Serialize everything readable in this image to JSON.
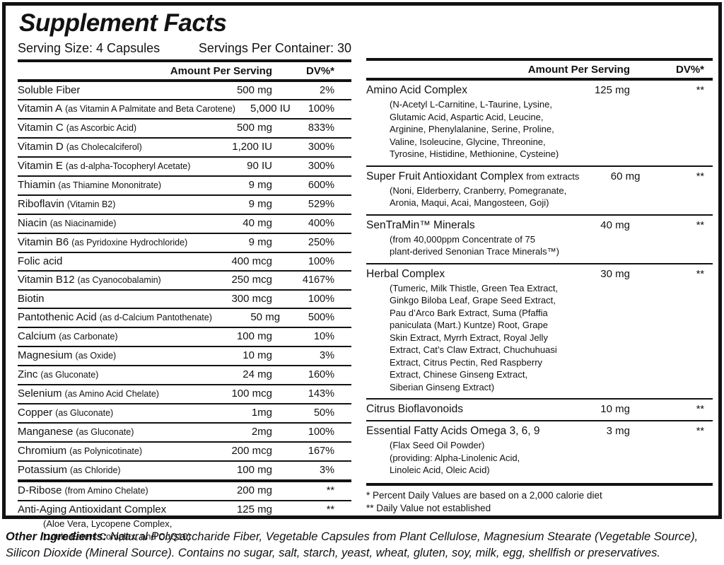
{
  "label": {
    "title": "Supplement Facts",
    "serving_size": "Serving Size: 4 Capsules",
    "servings_per_container": "Servings Per Container: 30",
    "col_amount": "Amount Per Serving",
    "col_dv": "DV%*",
    "ink_color": "#121212",
    "background_color": "#ffffff"
  },
  "left_rows": [
    {
      "name": "Soluble Fiber",
      "amount": "500 mg",
      "dv": "2%"
    },
    {
      "name": "Vitamin A",
      "note": "(as Vitamin A Palmitate and Beta Carotene)",
      "amount": "5,000 IU",
      "dv": "100%"
    },
    {
      "name": "Vitamin C",
      "note": "(as Ascorbic Acid)",
      "amount": "500 mg",
      "dv": "833%"
    },
    {
      "name": "Vitamin D",
      "note": "(as Cholecalciferol)",
      "amount": "1,200 IU",
      "dv": "300%"
    },
    {
      "name": "Vitamin E",
      "note": "(as d-alpha-Tocopheryl Acetate)",
      "amount": "90 IU",
      "dv": "300%"
    },
    {
      "name": "Thiamin",
      "note": "(as Thiamine Mononitrate)",
      "amount": "9 mg",
      "dv": "600%"
    },
    {
      "name": "Riboflavin",
      "note": "(Vitamin B2)",
      "amount": "9 mg",
      "dv": "529%"
    },
    {
      "name": "Niacin",
      "note": "(as Niacinamide)",
      "amount": "40 mg",
      "dv": "400%"
    },
    {
      "name": "Vitamin B6",
      "note": "(as Pyridoxine Hydrochloride)",
      "amount": "9 mg",
      "dv": "250%"
    },
    {
      "name": "Folic acid",
      "amount": "400 mcg",
      "dv": "100%"
    },
    {
      "name": "Vitamin B12",
      "note": "(as Cyanocobalamin)",
      "amount": "250 mcg",
      "dv": "4167%"
    },
    {
      "name": "Biotin",
      "amount": "300 mcg",
      "dv": "100%"
    },
    {
      "name": "Pantothenic Acid",
      "note": "(as d-Calcium Pantothenate)",
      "amount": "50 mg",
      "dv": "500%"
    },
    {
      "name": "Calcium",
      "note": "(as Carbonate)",
      "amount": "100 mg",
      "dv": "10%"
    },
    {
      "name": "Magnesium",
      "note": "(as Oxide)",
      "amount": "10 mg",
      "dv": "3%"
    },
    {
      "name": "Zinc",
      "note": "(as Gluconate)",
      "amount": "24 mg",
      "dv": "160%"
    },
    {
      "name": "Selenium",
      "note": "(as Amino Acid Chelate)",
      "amount": "100 mcg",
      "dv": "143%"
    },
    {
      "name": "Copper",
      "note": "(as Gluconate)",
      "amount": "1mg",
      "dv": "50%"
    },
    {
      "name": "Manganese",
      "note": "(as Gluconate)",
      "amount": "2mg",
      "dv": "100%"
    },
    {
      "name": "Chromium",
      "note": "(as Polynicotinate)",
      "amount": "200 mcg",
      "dv": "167%"
    },
    {
      "name": "Potassium",
      "note": "(as Chloride)",
      "amount": "100 mg",
      "dv": "3%"
    },
    {
      "name": "D-Ribose",
      "note": "(from Amino Chelate)",
      "amount": "200 mg",
      "dv": "**",
      "thick_top": true
    },
    {
      "name": "Anti-Aging Antioxidant Complex",
      "amount": "125 mg",
      "dv": "**",
      "sub": [
        "(Aloe Vera, Lycopene Complex,",
        "Lutein Esters Complex, and CoQ10)"
      ]
    }
  ],
  "right_rows": [
    {
      "name": "Amino Acid Complex",
      "amount": "125 mg",
      "dv": "**",
      "sub": [
        "(N-Acetyl L-Carnitine, L-Taurine, Lysine,",
        "Glutamic Acid, Aspartic Acid, Leucine,",
        "Arginine, Phenylalanine, Serine, Proline,",
        "Valine, Isoleucine, Glycine, Threonine,",
        "Tyrosine, Histidine, Methionine, Cysteine)"
      ]
    },
    {
      "name": "Super Fruit Antioxidant Complex",
      "suffix": "from extracts",
      "amount": "60 mg",
      "dv": "**",
      "sub": [
        "(Noni, Elderberry, Cranberry, Pomegranate,",
        "Aronia, Maqui, Acai, Mangosteen, Goji)"
      ]
    },
    {
      "name": "SenTraMin™ Minerals",
      "amount": "40 mg",
      "dv": "**",
      "sub": [
        "(from 40,000ppm Concentrate of 75",
        "plant-derived Senonian Trace Minerals™)"
      ]
    },
    {
      "name": "Herbal Complex",
      "amount": "30 mg",
      "dv": "**",
      "sub": [
        "(Tumeric, Milk Thistle, Green Tea Extract,",
        "Ginkgo Biloba Leaf, Grape Seed Extract,",
        "Pau d’Arco Bark Extract, Suma (Pfaffia",
        "paniculata (Mart.) Kuntze) Root, Grape",
        "Skin Extract, Myrrh Extract, Royal Jelly",
        "Extract, Cat’s Claw Extract, Chuchuhuasi",
        "Extract, Citrus Pectin, Red Raspberry",
        "Extract, Chinese Ginseng Extract,",
        "Siberian Ginseng Extract)"
      ]
    },
    {
      "name": "Citrus Bioflavonoids",
      "amount": "10 mg",
      "dv": "**"
    },
    {
      "name": "Essential Fatty Acids Omega 3, 6, 9",
      "amount": "3 mg",
      "dv": "**",
      "sub": [
        "(Flax Seed Oil Powder)",
        "(providing: Alpha-Linolenic Acid,",
        "Linoleic Acid, Oleic Acid)"
      ]
    }
  ],
  "footnotes": [
    "* Percent Daily Values are based on a 2,000 calorie diet",
    "** Daily Value not established"
  ],
  "other_ingredients": {
    "label": "Other Ingredients:",
    "text": " Natural Polysaccharide Fiber, Vegetable Capsules from Plant Cellulose, Magnesium Stearate (Vegetable Source), Silicon Dioxide (Mineral Source). Contains no sugar, salt, starch, yeast, wheat, gluten, soy, milk, egg, shellfish or preservatives."
  }
}
